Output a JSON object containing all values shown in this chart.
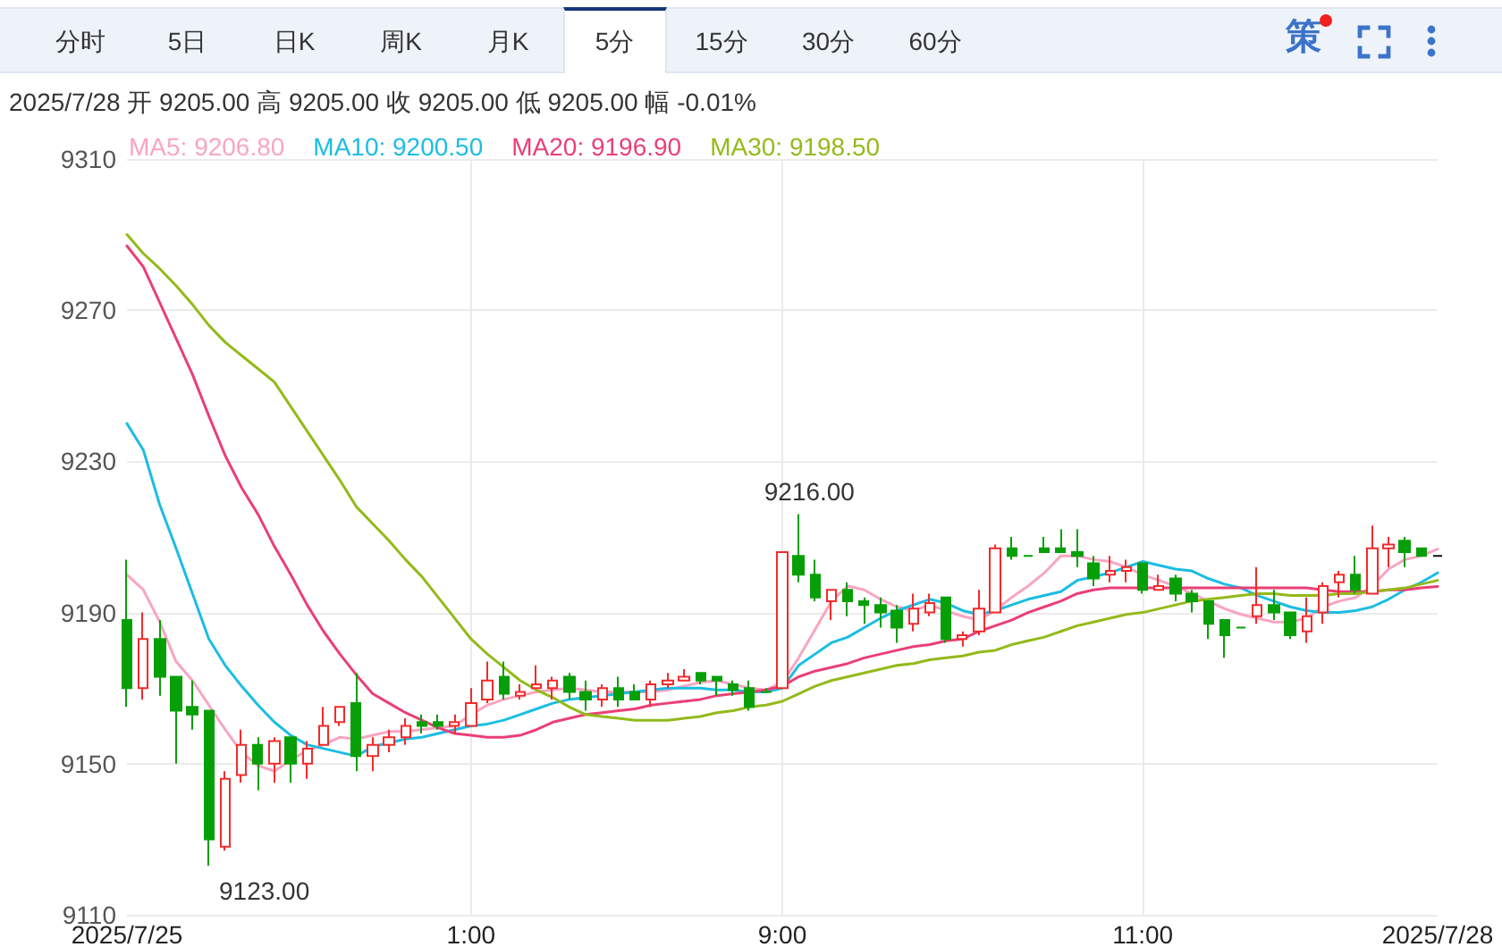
{
  "chart_data": {
    "type": "candlestick",
    "categories": [
      "2025/7/25",
      null,
      null,
      null,
      null,
      null,
      null,
      null,
      null,
      null,
      null,
      null,
      null,
      null,
      null,
      null,
      null,
      null,
      null,
      null,
      null,
      "1:00",
      null,
      null,
      null,
      null,
      null,
      null,
      null,
      null,
      null,
      null,
      null,
      null,
      null,
      null,
      null,
      null,
      null,
      null,
      "9:00",
      null,
      null,
      null,
      null,
      null,
      null,
      null,
      null,
      null,
      null,
      null,
      null,
      null,
      null,
      null,
      null,
      null,
      null,
      null,
      null,
      null,
      "11:00",
      null,
      null,
      null,
      null,
      null,
      null,
      null,
      null,
      null,
      null,
      null,
      null,
      null,
      null,
      null,
      null,
      null,
      "2025/7/28"
    ],
    "ylim": [
      9110,
      9310
    ],
    "yticks": [
      9110,
      9150,
      9190,
      9230,
      9270,
      9310
    ],
    "grid": true,
    "legend": "top left",
    "marker": "none",
    "line_style": "solid",
    "annotations": [
      "2025/7/28 开 9205.00 高 9205.00 收 9205.00 低 9205.00 幅 -0.01%",
      "分时",
      "5日",
      "日K",
      "周K",
      "月K",
      "5分",
      "15分",
      "30分",
      "60分",
      "策",
      "9216.00",
      "9123.00"
    ],
    "series": [
      {
        "ohlc": [
          [
            9188,
            9204,
            9165,
            9170
          ],
          [
            9170,
            9190,
            9167,
            9183
          ],
          [
            9183,
            9188,
            9168,
            9173
          ],
          [
            9173,
            9173,
            9150,
            9164
          ],
          [
            9165,
            9172,
            9159,
            9163
          ],
          [
            9164,
            9164,
            9123,
            9130
          ],
          [
            9128,
            9148,
            9127,
            9146
          ],
          [
            9147,
            9159,
            9145,
            9155
          ],
          [
            9155,
            9157,
            9143,
            9150
          ],
          [
            9150,
            9157,
            9145,
            9156
          ],
          [
            9157,
            9157,
            9145,
            9150
          ],
          [
            9150,
            9156,
            9146,
            9154
          ],
          [
            9155,
            9165,
            9155,
            9160
          ],
          [
            9161,
            9165,
            9160,
            9165
          ],
          [
            9166,
            9174,
            9148,
            9152
          ],
          [
            9152,
            9157,
            9148,
            9155
          ],
          [
            9155,
            9159,
            9153,
            9157
          ],
          [
            9157,
            9162,
            9155,
            9160
          ],
          [
            9161,
            9163,
            9158,
            9160
          ],
          [
            9161,
            9163,
            9159,
            9160
          ],
          [
            9160,
            9163,
            9158,
            9161
          ],
          [
            9160,
            9170,
            9160,
            9166
          ],
          [
            9167,
            9177,
            9166,
            9172
          ],
          [
            9173,
            9177,
            9167,
            9168.5
          ],
          [
            9168,
            9171,
            9167,
            9169
          ],
          [
            9170,
            9176,
            9170,
            9171
          ],
          [
            9170,
            9173,
            9167,
            9172
          ],
          [
            9173,
            9174,
            9167,
            9169
          ],
          [
            9169,
            9172,
            9164,
            9167
          ],
          [
            9167,
            9171,
            9165,
            9170
          ],
          [
            9170,
            9173,
            9165,
            9167
          ],
          [
            9169,
            9171,
            9167,
            9167
          ],
          [
            9167,
            9172,
            9165,
            9171
          ],
          [
            9171,
            9174,
            9170,
            9172
          ],
          [
            9172,
            9175,
            9172,
            9173
          ],
          [
            9174,
            9174,
            9171,
            9172
          ],
          [
            9173,
            9173,
            9168,
            9172
          ],
          [
            9171,
            9172,
            9168,
            9169.5
          ],
          [
            9170,
            9172,
            9164,
            9165
          ],
          [
            9169,
            9170,
            9169,
            9169
          ],
          [
            9170,
            9206,
            9170,
            9206
          ],
          [
            9205,
            9216,
            9198,
            9200
          ],
          [
            9200,
            9204,
            9193,
            9194
          ],
          [
            9193,
            9196,
            9188,
            9196
          ],
          [
            9196,
            9198,
            9189,
            9193
          ],
          [
            9193,
            9194,
            9187,
            9192
          ],
          [
            9192,
            9194,
            9186,
            9190
          ],
          [
            9190.5,
            9192,
            9182,
            9186
          ],
          [
            9187,
            9195,
            9185,
            9191
          ],
          [
            9190,
            9195,
            9189,
            9192.5
          ],
          [
            9194,
            9194,
            9182,
            9183
          ],
          [
            9183,
            9185,
            9181,
            9184
          ],
          [
            9185,
            9196,
            9184,
            9191
          ],
          [
            9190,
            9208,
            9190,
            9207
          ],
          [
            9207,
            9210,
            9204,
            9205
          ],
          [
            9205,
            9205,
            9205,
            9205
          ],
          [
            9207,
            9210,
            9206,
            9206
          ],
          [
            9207,
            9212,
            9206,
            9206
          ],
          [
            9206,
            9212,
            9202,
            9205
          ],
          [
            9203,
            9205,
            9197,
            9199
          ],
          [
            9200,
            9205,
            9198,
            9201
          ],
          [
            9201,
            9204,
            9198,
            9202
          ],
          [
            9203,
            9203,
            9195,
            9196
          ],
          [
            9196,
            9200,
            9196,
            9197
          ],
          [
            9199,
            9200,
            9193,
            9195
          ],
          [
            9195,
            9196,
            9190,
            9193
          ],
          [
            9193,
            9193,
            9183,
            9187
          ],
          [
            9188,
            9188,
            9178,
            9184
          ],
          [
            9186,
            9186,
            9186,
            9186
          ],
          [
            9189,
            9202,
            9187,
            9192
          ],
          [
            9192,
            9196,
            9188,
            9190
          ],
          [
            9190,
            9190,
            9183,
            9184
          ],
          [
            9185,
            9194,
            9182,
            9189
          ],
          [
            9190,
            9198,
            9187,
            9197
          ],
          [
            9198,
            9201,
            9194,
            9200
          ],
          [
            9200,
            9205,
            9195,
            9196
          ],
          [
            9195,
            9213,
            9195,
            9207
          ],
          [
            9207,
            9210,
            9202,
            9208
          ],
          [
            9209,
            9210,
            9202,
            9206
          ],
          [
            9207,
            9207,
            9205,
            9205
          ],
          [
            9205,
            9205,
            9205,
            9205
          ]
        ],
        "colors": [
          "#079f07",
          "#f52a2a",
          "#079f07",
          "#079f07",
          "#079f07",
          "#079f07",
          "#f52a2a",
          "#f52a2a",
          "#079f07",
          "#f52a2a",
          "#079f07",
          "#f52a2a",
          "#f52a2a",
          "#f52a2a",
          "#079f07",
          "#f52a2a",
          "#f52a2a",
          "#f52a2a",
          "#079f07",
          "#079f07",
          "#f52a2a",
          "#f52a2a",
          "#f52a2a",
          "#079f07",
          "#f52a2a",
          "#f52a2a",
          "#f52a2a",
          "#079f07",
          "#079f07",
          "#f52a2a",
          "#079f07",
          "#079f07",
          "#f52a2a",
          "#f52a2a",
          "#f52a2a",
          "#079f07",
          "#079f07",
          "#079f07",
          "#079f07",
          "#079f07",
          "#f52a2a",
          "#079f07",
          "#079f07",
          "#f52a2a",
          "#079f07",
          "#079f07",
          "#079f07",
          "#079f07",
          "#f52a2a",
          "#f52a2a",
          "#079f07",
          "#f52a2a",
          "#f52a2a",
          "#f52a2a",
          "#079f07",
          "#079f07",
          "#079f07",
          "#079f07",
          "#079f07",
          "#079f07",
          "#f52a2a",
          "#f52a2a",
          "#079f07",
          "#f52a2a",
          "#079f07",
          "#079f07",
          "#079f07",
          "#079f07",
          "#079f07",
          "#f52a2a",
          "#079f07",
          "#079f07",
          "#f52a2a",
          "#f52a2a",
          "#f52a2a",
          "#079f07",
          "#f52a2a",
          "#f52a2a",
          "#079f07",
          "#079f07",
          "#111111"
        ]
      },
      {
        "type": "line",
        "name": "MA5: 9206.80",
        "color": "#f8a5c2",
        "values": [
          9200,
          9196,
          9187.5,
          9177,
          9172,
          9165.5,
          9159,
          9153,
          9149.5,
          9148,
          9151,
          9153.5,
          9155,
          9157,
          9156.5,
          9157.5,
          9158.5,
          9158.5,
          9159,
          9159.5,
          9160,
          9163,
          9165.5,
          9167,
          9168,
          9169,
          9169.5,
          9170,
          9169.5,
          9169,
          9169,
          9169,
          9169,
          9169.5,
          9170.5,
          9171.5,
          9172,
          9171,
          9170,
          9169.5,
          9171.5,
          9178,
          9185.5,
          9193,
          9197,
          9196,
          9193.5,
          9191.5,
          9190.5,
          9192,
          9190.5,
          9189,
          9188,
          9190.5,
          9194,
          9197,
          9200.5,
          9205,
          9205,
          9204,
          9203.5,
          9202,
          9200,
          9198.5,
          9197,
          9195,
          9193,
          9191,
          9189.5,
          9188.5,
          9187.5,
          9187.5,
          9188.5,
          9191.5,
          9193,
          9194,
          9197,
          9201.5,
          9204,
          9205,
          9206.8
        ]
      },
      {
        "type": "line",
        "name": "MA10: 9200.50",
        "color": "#1bbde3",
        "values": [
          9240,
          9233,
          9218.5,
          9207,
          9195,
          9183,
          9176,
          9170.5,
          9165.5,
          9161,
          9157.5,
          9155,
          9154,
          9153,
          9152,
          9154.5,
          9155.5,
          9156.5,
          9157,
          9158,
          9159,
          9160,
          9160.5,
          9161.5,
          9163,
          9164.5,
          9166,
          9167,
          9167.5,
          9168,
          9168.5,
          9169,
          9169.5,
          9170,
          9170,
          9170,
          9169.5,
          9169.5,
          9169,
          9169,
          9170,
          9176,
          9179,
          9182,
          9183.5,
          9186,
          9188.5,
          9190.5,
          9192,
          9193.5,
          9192.5,
          9190.5,
          9189.5,
          9190.5,
          9192,
          9193.5,
          9194.5,
          9195.5,
          9198.5,
          9199.5,
          9200.5,
          9202,
          9203.5,
          9202.5,
          9201.5,
          9201,
          9199,
          9197.5,
          9196.5,
          9194.5,
          9193,
          9191.5,
          9190.5,
          9190,
          9190,
          9190.5,
          9191.5,
          9193.5,
          9196,
          9198,
          9200.5
        ]
      },
      {
        "type": "line",
        "name": "MA20: 9196.90",
        "color": "#ea3f75",
        "values": [
          9287,
          9281.5,
          9272,
          9262.5,
          9253,
          9242,
          9231.5,
          9223,
          9216,
          9207.5,
          9200,
          9192,
          9185,
          9179,
          9173.5,
          9168.5,
          9166,
          9163.5,
          9161.5,
          9159.5,
          9158,
          9157.5,
          9157,
          9157,
          9157.5,
          9159,
          9161,
          9162,
          9163,
          9163.5,
          9164,
          9164.5,
          9165.5,
          9166,
          9166.5,
          9167,
          9168,
          9168.5,
          9169,
          9169.5,
          9170.5,
          9173,
          9174.5,
          9175.5,
          9176.5,
          9178,
          9179,
          9180,
          9181,
          9181.5,
          9182.5,
          9183,
          9185,
          9186.5,
          9188,
          9190,
          9191.5,
          9193,
          9195,
          9196,
          9196.5,
          9196.5,
          9196.5,
          9196.5,
          9196.5,
          9196.5,
          9196.5,
          9196.5,
          9196.5,
          9196.5,
          9196.5,
          9196.5,
          9196.5,
          9196,
          9195.5,
          9195.5,
          9195.5,
          9196,
          9196,
          9196.5,
          9196.9
        ]
      },
      {
        "type": "line",
        "name": "MA30: 9198.50",
        "color": "#93ba1a",
        "values": [
          9290,
          9285,
          9281,
          9276.5,
          9271.5,
          9266,
          9261.5,
          9258,
          9254.5,
          9251,
          9244.5,
          9238,
          9231.5,
          9225,
          9218,
          9213.5,
          9209,
          9204,
          9199.5,
          9194,
          9188.5,
          9183,
          9179,
          9175.5,
          9172,
          9169.5,
          9167.5,
          9165,
          9163,
          9162.5,
          9162,
          9161.5,
          9161.5,
          9161.5,
          9162,
          9162.5,
          9163.5,
          9164,
          9165,
          9165.5,
          9166.5,
          9168.5,
          9170.5,
          9172,
          9173,
          9174,
          9175,
          9176,
          9176.5,
          9177.5,
          9178,
          9178.5,
          9179.5,
          9180,
          9181.5,
          9182.5,
          9183.5,
          9185,
          9186.5,
          9187.5,
          9188.5,
          9189.5,
          9190,
          9191,
          9192,
          9193,
          9193.5,
          9194,
          9194.5,
          9195,
          9195,
          9194.5,
          9194.5,
          9194.5,
          9195,
          9195,
          9195.5,
          9196,
          9196.5,
          9197.5,
          9198.5
        ]
      }
    ]
  }
}
